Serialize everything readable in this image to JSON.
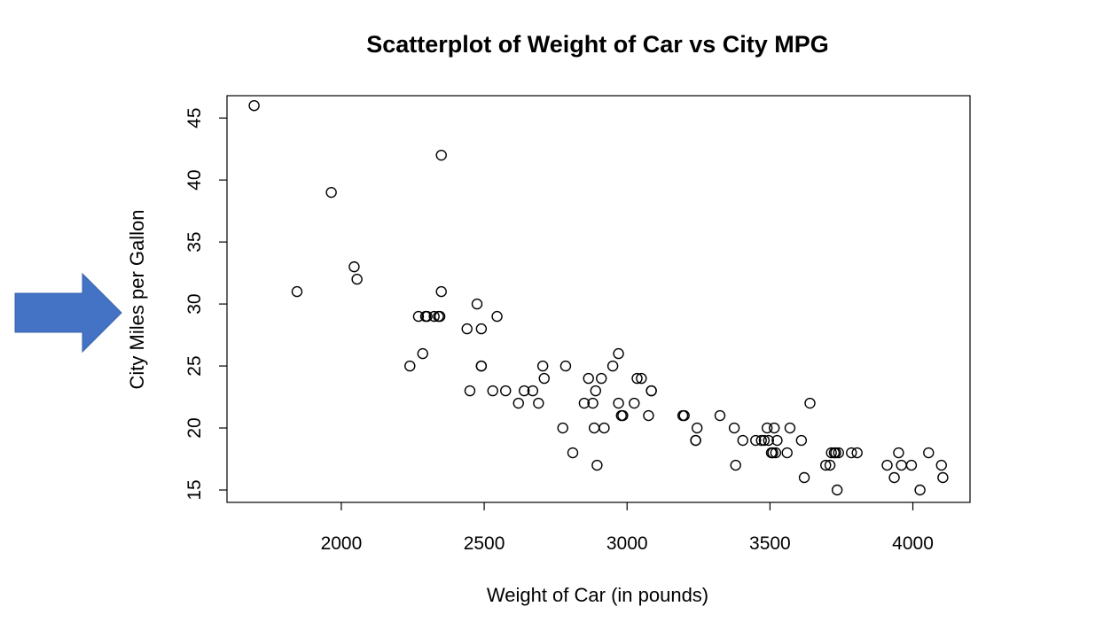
{
  "chart_data": {
    "type": "scatter",
    "title": "Scatterplot of Weight of Car vs City MPG",
    "xlabel": "Weight of Car (in pounds)",
    "ylabel": "City Miles per Gallon",
    "xlim": [
      1600,
      4200
    ],
    "ylim": [
      14,
      46.8
    ],
    "xticks": [
      2000,
      2500,
      3000,
      3500,
      4000
    ],
    "yticks": [
      15,
      20,
      25,
      30,
      35,
      40,
      45
    ],
    "grid": false,
    "accent_arrow_color": "#4472C4",
    "points": [
      [
        1695,
        46
      ],
      [
        1845,
        31
      ],
      [
        1965,
        39
      ],
      [
        2045,
        33
      ],
      [
        2055,
        32
      ],
      [
        2240,
        25
      ],
      [
        2270,
        29
      ],
      [
        2285,
        26
      ],
      [
        2295,
        29
      ],
      [
        2300,
        29
      ],
      [
        2325,
        29
      ],
      [
        2340,
        29
      ],
      [
        2345,
        29
      ],
      [
        2350,
        31
      ],
      [
        2350,
        42
      ],
      [
        2440,
        28
      ],
      [
        2450,
        23
      ],
      [
        2475,
        30
      ],
      [
        2490,
        25
      ],
      [
        2490,
        28
      ],
      [
        2490,
        25
      ],
      [
        2530,
        23
      ],
      [
        2545,
        29
      ],
      [
        2575,
        23
      ],
      [
        2620,
        22
      ],
      [
        2640,
        23
      ],
      [
        2670,
        23
      ],
      [
        2690,
        22
      ],
      [
        2705,
        25
      ],
      [
        2710,
        24
      ],
      [
        2775,
        20
      ],
      [
        2785,
        25
      ],
      [
        2810,
        18
      ],
      [
        2850,
        22
      ],
      [
        2865,
        24
      ],
      [
        2880,
        22
      ],
      [
        2885,
        20
      ],
      [
        2890,
        23
      ],
      [
        2895,
        17
      ],
      [
        2910,
        24
      ],
      [
        2920,
        20
      ],
      [
        2950,
        25
      ],
      [
        2970,
        26
      ],
      [
        2970,
        22
      ],
      [
        2980,
        21
      ],
      [
        2985,
        21
      ],
      [
        3025,
        22
      ],
      [
        3035,
        24
      ],
      [
        3050,
        24
      ],
      [
        3075,
        21
      ],
      [
        3085,
        23
      ],
      [
        3085,
        23
      ],
      [
        3195,
        21
      ],
      [
        3200,
        21
      ],
      [
        3240,
        19
      ],
      [
        3245,
        20
      ],
      [
        3240,
        19
      ],
      [
        3325,
        21
      ],
      [
        3375,
        20
      ],
      [
        3380,
        17
      ],
      [
        3405,
        19
      ],
      [
        3450,
        19
      ],
      [
        3470,
        19
      ],
      [
        3480,
        19
      ],
      [
        3490,
        20
      ],
      [
        3495,
        19
      ],
      [
        3505,
        18
      ],
      [
        3510,
        18
      ],
      [
        3515,
        20
      ],
      [
        3520,
        18
      ],
      [
        3525,
        19
      ],
      [
        3560,
        18
      ],
      [
        3570,
        20
      ],
      [
        3610,
        19
      ],
      [
        3620,
        16
      ],
      [
        3640,
        22
      ],
      [
        3695,
        17
      ],
      [
        3710,
        17
      ],
      [
        3715,
        18
      ],
      [
        3725,
        18
      ],
      [
        3730,
        18
      ],
      [
        3735,
        15
      ],
      [
        3740,
        18
      ],
      [
        3785,
        18
      ],
      [
        3805,
        18
      ],
      [
        3910,
        17
      ],
      [
        3935,
        16
      ],
      [
        3950,
        18
      ],
      [
        3960,
        17
      ],
      [
        3995,
        17
      ],
      [
        4025,
        15
      ],
      [
        4055,
        18
      ],
      [
        4100,
        17
      ],
      [
        4105,
        16
      ]
    ]
  }
}
